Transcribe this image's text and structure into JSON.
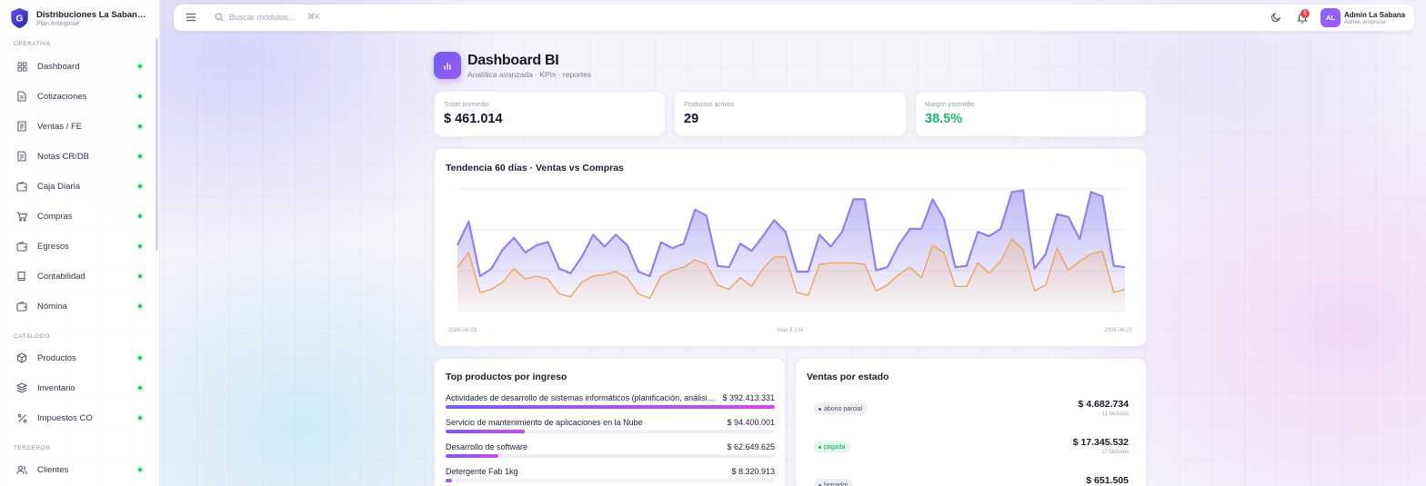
{
  "brand": {
    "name": "Distribuciones La Sabana S.A.S.",
    "plan": "Plan enterprise",
    "logo_letter": "G"
  },
  "sidebar": {
    "sections": [
      {
        "label": "OPERATIVA",
        "items": [
          {
            "label": "Dashboard",
            "icon": "grid-icon"
          },
          {
            "label": "Cotizaciones",
            "icon": "document-icon"
          },
          {
            "label": "Ventas / FE",
            "icon": "receipt-icon"
          },
          {
            "label": "Notas CR/DB",
            "icon": "notes-icon"
          },
          {
            "label": "Caja Diaria",
            "icon": "wallet-icon"
          },
          {
            "label": "Compras",
            "icon": "cart-icon"
          },
          {
            "label": "Egresos",
            "icon": "wallet-icon"
          },
          {
            "label": "Contabilidad",
            "icon": "book-icon"
          },
          {
            "label": "Nómina",
            "icon": "wallet-icon"
          }
        ]
      },
      {
        "label": "CATÁLOGO",
        "items": [
          {
            "label": "Productos",
            "icon": "box-icon"
          },
          {
            "label": "Inventario",
            "icon": "layers-icon"
          },
          {
            "label": "Impuestos CO",
            "icon": "percent-icon"
          }
        ]
      },
      {
        "label": "TERCEROS",
        "items": [
          {
            "label": "Clientes",
            "icon": "users-icon"
          }
        ]
      }
    ]
  },
  "topbar": {
    "search_placeholder": "Buscar módulos...",
    "shortcut": "⌘K",
    "notifications": "1",
    "avatar_initials": "AL",
    "user_name": "Admin La Sabana",
    "user_role": "Admin empresa"
  },
  "page": {
    "title": "Dashboard BI",
    "subtitle": "Analítica avanzada · KPIs · reportes"
  },
  "kpis": [
    {
      "label": "Ticket promedio",
      "value": "$ 461.014"
    },
    {
      "label": "Productos activos",
      "value": "29"
    },
    {
      "label": "Margen promedio",
      "value": "38.5%",
      "color": "#1fb877"
    }
  ],
  "trend": {
    "title": "Tendencia 60 días · Ventas vs Compras",
    "x_start": "2026-04-23",
    "x_mid": "máx 8.3 M",
    "x_end": "2026-06-21"
  },
  "chart_data": {
    "type": "area",
    "title": "Tendencia 60 días · Ventas vs Compras",
    "x_start": "2026-04-23",
    "x_end": "2026-06-21",
    "ymax": 8.3,
    "unit": "M",
    "series": [
      {
        "color": "#8f82ec",
        "values": [
          4.5,
          6.1,
          2.4,
          2.9,
          4.2,
          5.0,
          4.0,
          4.5,
          4.7,
          2.9,
          2.6,
          3.7,
          5.2,
          4.4,
          5.2,
          4.5,
          2.7,
          2.4,
          4.7,
          4.3,
          4.6,
          6.9,
          6.5,
          3.1,
          3.0,
          4.6,
          4.1,
          5.1,
          6.2,
          5.4,
          2.7,
          2.7,
          5.2,
          4.4,
          5.4,
          7.6,
          7.6,
          2.8,
          3.0,
          4.5,
          5.6,
          5.6,
          7.6,
          6.3,
          3.0,
          3.1,
          5.4,
          5.1,
          5.6,
          8.1,
          8.2,
          2.9,
          3.9,
          6.6,
          6.4,
          4.9,
          8.1,
          7.8,
          3.1,
          3.0
        ]
      },
      {
        "color": "#f0a65a",
        "values": [
          3.0,
          4.0,
          1.3,
          1.5,
          2.0,
          2.9,
          2.2,
          2.4,
          2.2,
          1.2,
          1.0,
          2.0,
          2.4,
          2.5,
          2.7,
          2.3,
          1.2,
          0.9,
          2.4,
          2.8,
          3.0,
          3.5,
          3.2,
          1.8,
          1.5,
          2.3,
          1.7,
          2.9,
          3.7,
          3.7,
          1.3,
          1.1,
          3.2,
          3.3,
          3.3,
          3.3,
          3.2,
          1.4,
          1.8,
          2.5,
          3.0,
          2.3,
          4.5,
          4.0,
          1.7,
          1.7,
          3.3,
          2.6,
          3.4,
          4.9,
          4.2,
          1.4,
          1.8,
          4.3,
          2.8,
          3.4,
          3.9,
          4.1,
          1.3,
          1.5
        ]
      }
    ]
  },
  "top_products": {
    "title": "Top productos por ingreso",
    "items": [
      {
        "name": "Actividades de desarrollo de sistemas informáticos (planificación, análisis, diseño, programación, pruebas)",
        "value": "$ 392.413.331",
        "pct": 100
      },
      {
        "name": "Servicio de mantenimiento de aplicaciones en la Nube",
        "value": "$ 94.400.001",
        "pct": 24
      },
      {
        "name": "Desarrollo de software",
        "value": "$ 62.649.625",
        "pct": 16
      },
      {
        "name": "Detergente Fab 1kg",
        "value": "$ 8.320.913",
        "pct": 2
      }
    ]
  },
  "sales_by_status": {
    "title": "Ventas por estado",
    "items": [
      {
        "status": "abono parcial",
        "amount": "$ 4.682.734",
        "count": "11 facturas",
        "style": "gray"
      },
      {
        "status": "pagada",
        "amount": "$ 17.345.532",
        "count": "27 facturas",
        "style": "green"
      },
      {
        "status": "borrador",
        "amount": "$ 651.505",
        "count": "",
        "style": "gray"
      }
    ]
  }
}
